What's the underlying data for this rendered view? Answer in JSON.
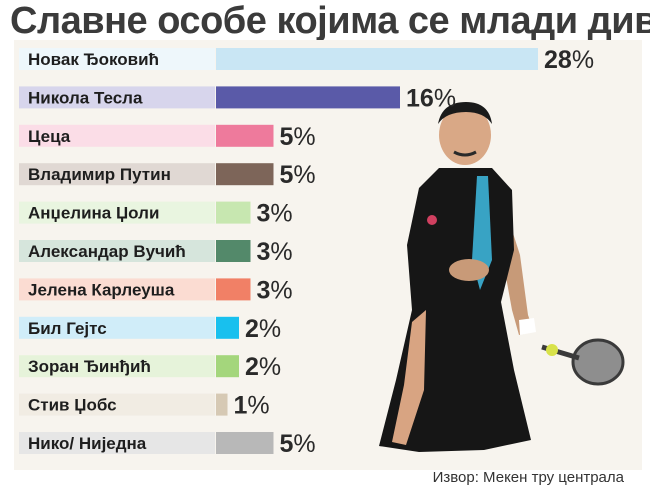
{
  "title": "Славне особе којима се млади диве",
  "source": "Извор: Мекен тру централа",
  "colors": {
    "panel": "#f7f4ee",
    "title": "#3b3b3b"
  },
  "chart_data": {
    "type": "bar",
    "orientation": "horizontal",
    "title": "Славне особе којима се млади диве",
    "xlabel": "",
    "ylabel": "",
    "grid": false,
    "legend": "none",
    "unit": "%",
    "xlim": [
      0,
      28
    ],
    "categories": [
      "Новак Ђоковић",
      "Никола Тесла",
      "Цеца",
      "Владимир Путин",
      "Анџелина Џоли",
      "Александар Вучић",
      "Јелена Карлеуша",
      "Бил Гејтс",
      "Зоран Ђинђић",
      "Стив Џобс",
      "Нико/ Ниједна"
    ],
    "values": [
      28,
      16,
      5,
      5,
      3,
      3,
      3,
      2,
      2,
      1,
      5
    ],
    "bar_colors": [
      "#c9e6f4",
      "#5a5aa8",
      "#ee7a9c",
      "#7d6559",
      "#c7e7b0",
      "#53896a",
      "#f18066",
      "#18c0ee",
      "#a4d67c",
      "#d6c9b4",
      "#b8b8b8"
    ],
    "label_bg_colors": [
      "#eef7fb",
      "#d7d5ec",
      "#fbdde7",
      "#e0d8d3",
      "#e9f5e0",
      "#d6e5dc",
      "#fbdcd2",
      "#d0edf9",
      "#e6f3da",
      "#f1ece3",
      "#e6e6e6"
    ]
  }
}
